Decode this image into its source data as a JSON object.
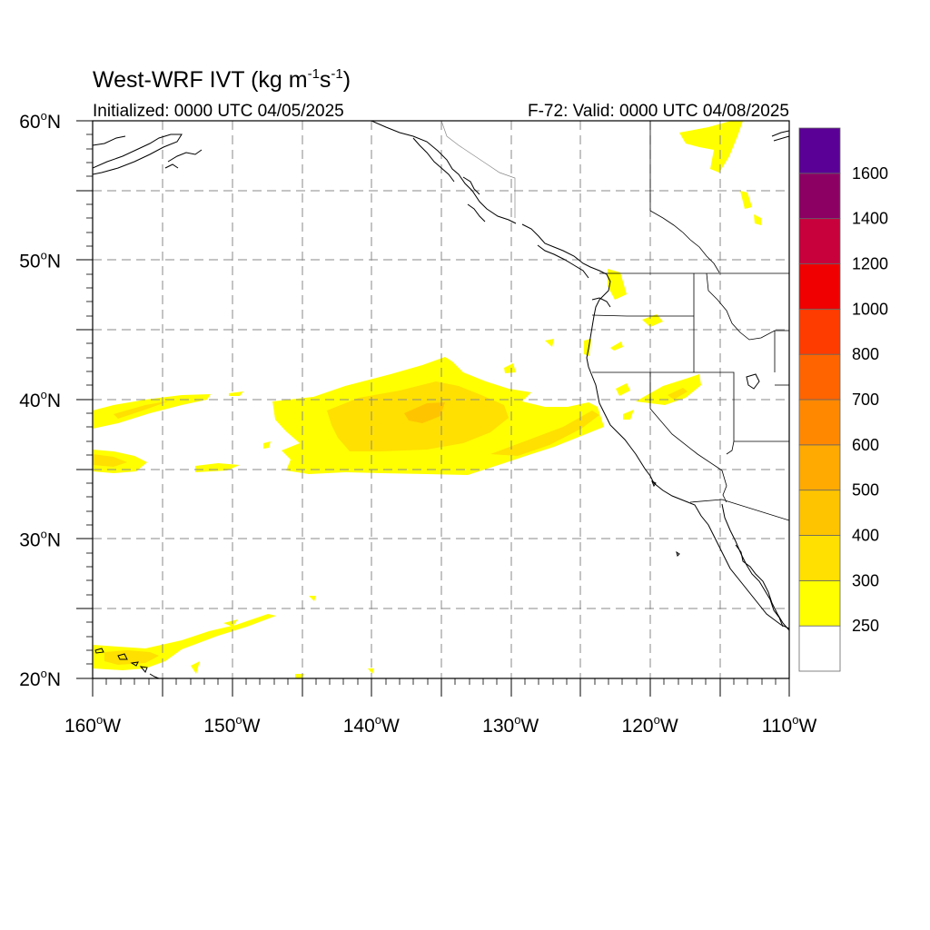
{
  "title": {
    "main": "West-WRF IVT (kg m",
    "sup1": "-1",
    "mid": "s",
    "sup2": "-1",
    "end": ")"
  },
  "subtitle_left": "Initialized: 0000 UTC 04/05/2025",
  "subtitle_right": "F-72: Valid: 0000 UTC 04/08/2025",
  "lat_ticks": [
    {
      "value": 60,
      "label": "60",
      "hemi": "N"
    },
    {
      "value": 50,
      "label": "50",
      "hemi": "N"
    },
    {
      "value": 40,
      "label": "40",
      "hemi": "N"
    },
    {
      "value": 30,
      "label": "30",
      "hemi": "N"
    },
    {
      "value": 20,
      "label": "20",
      "hemi": "N"
    }
  ],
  "lon_ticks": [
    {
      "value": -160,
      "label": "160",
      "hemi": "W"
    },
    {
      "value": -150,
      "label": "150",
      "hemi": "W"
    },
    {
      "value": -140,
      "label": "140",
      "hemi": "W"
    },
    {
      "value": -130,
      "label": "130",
      "hemi": "W"
    },
    {
      "value": -120,
      "label": "120",
      "hemi": "W"
    },
    {
      "value": -110,
      "label": "110",
      "hemi": "W"
    }
  ],
  "map_extent": {
    "lon": [
      -160,
      -110
    ],
    "lat": [
      20,
      60
    ]
  },
  "colorbar": {
    "levels": [
      "250",
      "300",
      "400",
      "500",
      "600",
      "700",
      "800",
      "1000",
      "1200",
      "1400",
      "1600"
    ],
    "colors": [
      "#ffffff",
      "#ffff00",
      "#ffe000",
      "#ffc400",
      "#ffaa00",
      "#ff8800",
      "#ff6400",
      "#ff3c00",
      "#f00000",
      "#c8003c",
      "#8c0064",
      "#5a0096"
    ]
  },
  "chart_data": {
    "type": "heatmap",
    "title": "West-WRF IVT (kg m-1s-1)",
    "units": "kg m-1 s-1",
    "xlim": [
      -160,
      -110
    ],
    "ylim": [
      20,
      60
    ],
    "grid": true,
    "legend": "right colorbar",
    "features": [
      {
        "name": "main-ivt-plume",
        "level": "300-400",
        "lon_range": [
          -145,
          -122
        ],
        "lat_range": [
          35,
          43
        ]
      },
      {
        "name": "core-plume",
        "level": "400-500",
        "lon_range": [
          -137,
          -133
        ],
        "lat_range": [
          38.5,
          40
        ]
      },
      {
        "name": "west-band",
        "level": "250-300",
        "lon_range": [
          -160,
          -150
        ],
        "lat_range": [
          38.7,
          40.4
        ]
      },
      {
        "name": "hawaii-band",
        "level": "300-400",
        "lon_range": [
          -160,
          -148
        ],
        "lat_range": [
          20.5,
          23.8
        ]
      }
    ]
  }
}
